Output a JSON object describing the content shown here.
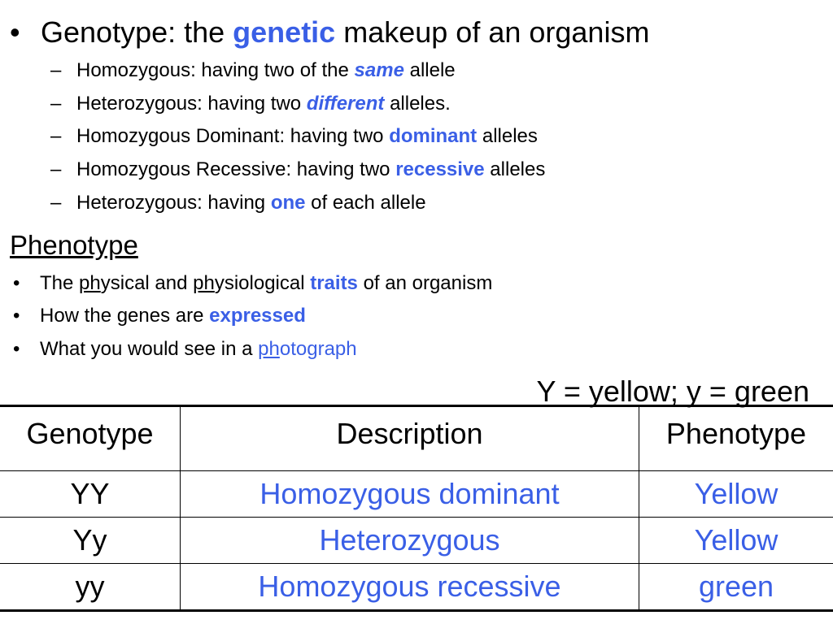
{
  "genotype_line": {
    "bullet": "•",
    "segments": [
      {
        "text": "Genotype: the ",
        "style": ""
      },
      {
        "text": "genetic",
        "style": "blue bold"
      },
      {
        "text": " makeup of an organism",
        "style": ""
      }
    ]
  },
  "genotype_subitems": [
    {
      "marker": "–",
      "segments": [
        {
          "text": "Homozygous: having two of the ",
          "style": ""
        },
        {
          "text": "same",
          "style": "blue bold ital"
        },
        {
          "text": " allele",
          "style": ""
        }
      ]
    },
    {
      "marker": "–",
      "segments": [
        {
          "text": "Heterozygous: having two ",
          "style": ""
        },
        {
          "text": "different",
          "style": "blue bold ital"
        },
        {
          "text": " alleles.",
          "style": ""
        }
      ]
    },
    {
      "marker": "–",
      "segments": [
        {
          "text": "Homozygous Dominant: having two ",
          "style": ""
        },
        {
          "text": "dominant",
          "style": "blue bold"
        },
        {
          "text": " alleles",
          "style": ""
        }
      ]
    },
    {
      "marker": "–",
      "segments": [
        {
          "text": "Homozygous Recessive: having two ",
          "style": ""
        },
        {
          "text": "recessive",
          "style": "blue bold"
        },
        {
          "text": " alleles",
          "style": ""
        }
      ]
    },
    {
      "marker": "–",
      "segments": [
        {
          "text": "Heterozygous: having ",
          "style": ""
        },
        {
          "text": "one",
          "style": "blue bold"
        },
        {
          "text": " of each allele",
          "style": ""
        }
      ]
    }
  ],
  "phenotype_title": "Phenotype",
  "phenotype_bullets": [
    {
      "marker": "•",
      "segments": [
        {
          "text": "The ",
          "style": ""
        },
        {
          "text": "ph",
          "style": "u"
        },
        {
          "text": "ysical and ",
          "style": ""
        },
        {
          "text": "ph",
          "style": "u"
        },
        {
          "text": "ysiological ",
          "style": ""
        },
        {
          "text": "traits",
          "style": "blue bold"
        },
        {
          "text": " of an organism",
          "style": ""
        }
      ]
    },
    {
      "marker": "•",
      "segments": [
        {
          "text": "How the genes are ",
          "style": ""
        },
        {
          "text": "expressed",
          "style": "blue bold"
        }
      ]
    },
    {
      "marker": "•",
      "segments": [
        {
          "text": "What you would see in a ",
          "style": ""
        },
        {
          "text": "ph",
          "style": "blue u"
        },
        {
          "text": "otograph",
          "style": "blue"
        }
      ]
    }
  ],
  "key": "Y = yellow; y = green",
  "table": {
    "headers": [
      "Genotype",
      "Description",
      "Phenotype"
    ],
    "rows": [
      [
        "YY",
        "Homozygous dominant",
        "Yellow"
      ],
      [
        "Yy",
        "Heterozygous",
        "Yellow"
      ],
      [
        "yy",
        "Homozygous recessive",
        "green"
      ]
    ]
  },
  "colors": {
    "accent_blue": "#3a5fe6",
    "text": "#000000"
  }
}
